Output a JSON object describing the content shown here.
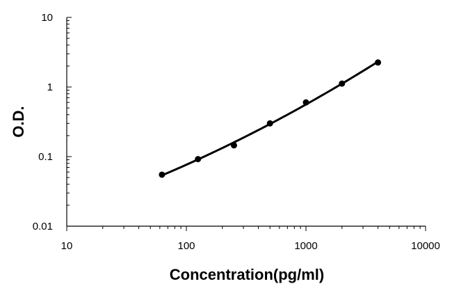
{
  "chart_data": {
    "type": "scatter",
    "title": "",
    "xlabel": "Concentration(pg/ml)",
    "ylabel": "O.D.",
    "xscale": "log",
    "yscale": "log",
    "xlim": [
      10,
      10000
    ],
    "ylim": [
      0.01,
      10
    ],
    "x_tick_labels": [
      "10",
      "100",
      "1000",
      "10000"
    ],
    "y_tick_labels": [
      "0.01",
      "0.1",
      "1",
      "10"
    ],
    "grid": false,
    "legend": "none",
    "fit_line": "smooth curve through points",
    "series": [
      {
        "x": [
          62.5,
          125,
          250,
          500,
          1000,
          2000,
          4000
        ],
        "y": [
          0.055,
          0.092,
          0.145,
          0.3,
          0.6,
          1.12,
          2.25
        ]
      }
    ],
    "colors": {
      "line": "#000000",
      "marker": "#000000",
      "axis": "#000000"
    }
  }
}
